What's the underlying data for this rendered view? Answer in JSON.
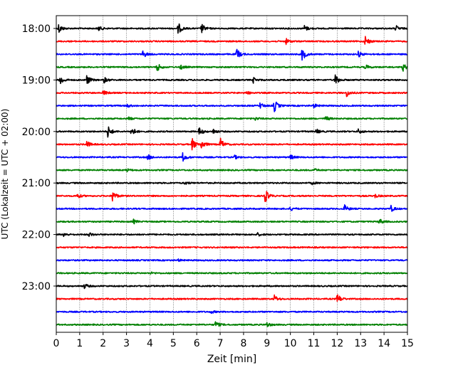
{
  "chart_data": {
    "type": "line",
    "title": "",
    "xlabel": "Zeit  [min]",
    "ylabel": "UTC (Lokalzeit = UTC + 02:00)",
    "xlim": [
      0,
      15
    ],
    "x_ticks": [
      0,
      1,
      2,
      3,
      4,
      5,
      6,
      7,
      8,
      9,
      10,
      11,
      12,
      13,
      14,
      15
    ],
    "x_tick_labels": [
      "0",
      "1",
      "2",
      "3",
      "4",
      "5",
      "6",
      "7",
      "8",
      "9",
      "10",
      "11",
      "12",
      "13",
      "14",
      "15"
    ],
    "y_tick_labels": [
      "18:00",
      "19:00",
      "20:00",
      "21:00",
      "22:00",
      "23:00"
    ],
    "y_tick_rows": [
      0,
      4,
      8,
      12,
      16,
      20
    ],
    "grid_x": true,
    "grid_style": "dotted",
    "traces": [
      {
        "row": 0,
        "color": "#000000",
        "events": [
          {
            "t": 0.1,
            "a": 1.0
          },
          {
            "t": 1.8,
            "a": 0.5
          },
          {
            "t": 5.2,
            "a": 1.2
          },
          {
            "t": 6.2,
            "a": 1.0
          },
          {
            "t": 10.6,
            "a": 0.6
          },
          {
            "t": 14.5,
            "a": 0.6
          }
        ]
      },
      {
        "row": 1,
        "color": "#ff0000",
        "events": [
          {
            "t": 9.8,
            "a": 0.6
          },
          {
            "t": 13.2,
            "a": 1.1
          }
        ]
      },
      {
        "row": 2,
        "color": "#0000ff",
        "events": [
          {
            "t": 3.7,
            "a": 0.8
          },
          {
            "t": 7.7,
            "a": 1.2
          },
          {
            "t": 10.5,
            "a": 1.4
          },
          {
            "t": 12.9,
            "a": 0.6
          }
        ]
      },
      {
        "row": 3,
        "color": "#008000",
        "events": [
          {
            "t": 4.3,
            "a": 0.9
          },
          {
            "t": 5.3,
            "a": 0.5
          },
          {
            "t": 13.2,
            "a": 0.5
          },
          {
            "t": 14.8,
            "a": 0.8
          }
        ]
      },
      {
        "row": 4,
        "color": "#000000",
        "events": [
          {
            "t": 0.15,
            "a": 1.1
          },
          {
            "t": 1.3,
            "a": 1.0
          },
          {
            "t": 2.0,
            "a": 0.8
          },
          {
            "t": 8.4,
            "a": 0.6
          },
          {
            "t": 11.9,
            "a": 1.2
          }
        ]
      },
      {
        "row": 5,
        "color": "#ff0000",
        "events": [
          {
            "t": 2.0,
            "a": 0.5
          },
          {
            "t": 8.1,
            "a": 0.4
          },
          {
            "t": 12.4,
            "a": 0.8
          }
        ]
      },
      {
        "row": 6,
        "color": "#0000ff",
        "events": [
          {
            "t": 3.0,
            "a": 0.4
          },
          {
            "t": 8.7,
            "a": 0.6
          },
          {
            "t": 9.3,
            "a": 1.4
          },
          {
            "t": 11.0,
            "a": 0.4
          }
        ]
      },
      {
        "row": 7,
        "color": "#008000",
        "events": [
          {
            "t": 3.1,
            "a": 0.3
          },
          {
            "t": 8.5,
            "a": 0.3
          },
          {
            "t": 11.5,
            "a": 0.5
          }
        ]
      },
      {
        "row": 8,
        "color": "#000000",
        "events": [
          {
            "t": 2.2,
            "a": 1.2
          },
          {
            "t": 3.2,
            "a": 1.1
          },
          {
            "t": 6.1,
            "a": 0.9
          },
          {
            "t": 6.7,
            "a": 0.5
          },
          {
            "t": 11.1,
            "a": 0.5
          },
          {
            "t": 12.9,
            "a": 0.5
          }
        ]
      },
      {
        "row": 9,
        "color": "#ff0000",
        "events": [
          {
            "t": 1.3,
            "a": 0.7
          },
          {
            "t": 5.8,
            "a": 1.3
          },
          {
            "t": 6.2,
            "a": 1.0
          },
          {
            "t": 7.0,
            "a": 1.3
          }
        ]
      },
      {
        "row": 10,
        "color": "#0000ff",
        "events": [
          {
            "t": 3.9,
            "a": 0.6
          },
          {
            "t": 5.4,
            "a": 0.9
          },
          {
            "t": 7.6,
            "a": 0.4
          },
          {
            "t": 10.0,
            "a": 0.5
          }
        ]
      },
      {
        "row": 11,
        "color": "#008000",
        "events": [
          {
            "t": 3.0,
            "a": 0.3
          },
          {
            "t": 11.0,
            "a": 0.3
          }
        ]
      },
      {
        "row": 12,
        "color": "#000000",
        "events": [
          {
            "t": 5.5,
            "a": 0.3
          },
          {
            "t": 10.9,
            "a": 0.3
          }
        ]
      },
      {
        "row": 13,
        "color": "#ff0000",
        "events": [
          {
            "t": 0.9,
            "a": 0.5
          },
          {
            "t": 2.4,
            "a": 1.2
          },
          {
            "t": 8.9,
            "a": 1.6
          },
          {
            "t": 13.6,
            "a": 0.4
          }
        ]
      },
      {
        "row": 14,
        "color": "#0000ff",
        "events": [
          {
            "t": 10.0,
            "a": 0.4
          },
          {
            "t": 12.3,
            "a": 0.8
          },
          {
            "t": 14.3,
            "a": 0.6
          }
        ]
      },
      {
        "row": 15,
        "color": "#008000",
        "events": [
          {
            "t": 3.3,
            "a": 0.4
          },
          {
            "t": 13.8,
            "a": 0.6
          }
        ]
      },
      {
        "row": 16,
        "color": "#000000",
        "events": [
          {
            "t": 0.3,
            "a": 0.4
          },
          {
            "t": 1.4,
            "a": 0.4
          },
          {
            "t": 8.6,
            "a": 0.3
          }
        ]
      },
      {
        "row": 17,
        "color": "#ff0000",
        "events": []
      },
      {
        "row": 18,
        "color": "#0000ff",
        "events": [
          {
            "t": 5.2,
            "a": 0.2
          }
        ]
      },
      {
        "row": 19,
        "color": "#008000",
        "events": [
          {
            "t": 4.0,
            "a": 0.2
          }
        ]
      },
      {
        "row": 20,
        "color": "#000000",
        "events": [
          {
            "t": 1.2,
            "a": 0.5
          }
        ]
      },
      {
        "row": 21,
        "color": "#ff0000",
        "events": [
          {
            "t": 9.3,
            "a": 0.8
          },
          {
            "t": 12.0,
            "a": 1.1
          }
        ]
      },
      {
        "row": 22,
        "color": "#0000ff",
        "events": [
          {
            "t": 6.6,
            "a": 0.3
          }
        ]
      },
      {
        "row": 23,
        "color": "#008000",
        "events": [
          {
            "t": 6.8,
            "a": 0.7
          },
          {
            "t": 9.0,
            "a": 0.5
          }
        ]
      }
    ]
  }
}
